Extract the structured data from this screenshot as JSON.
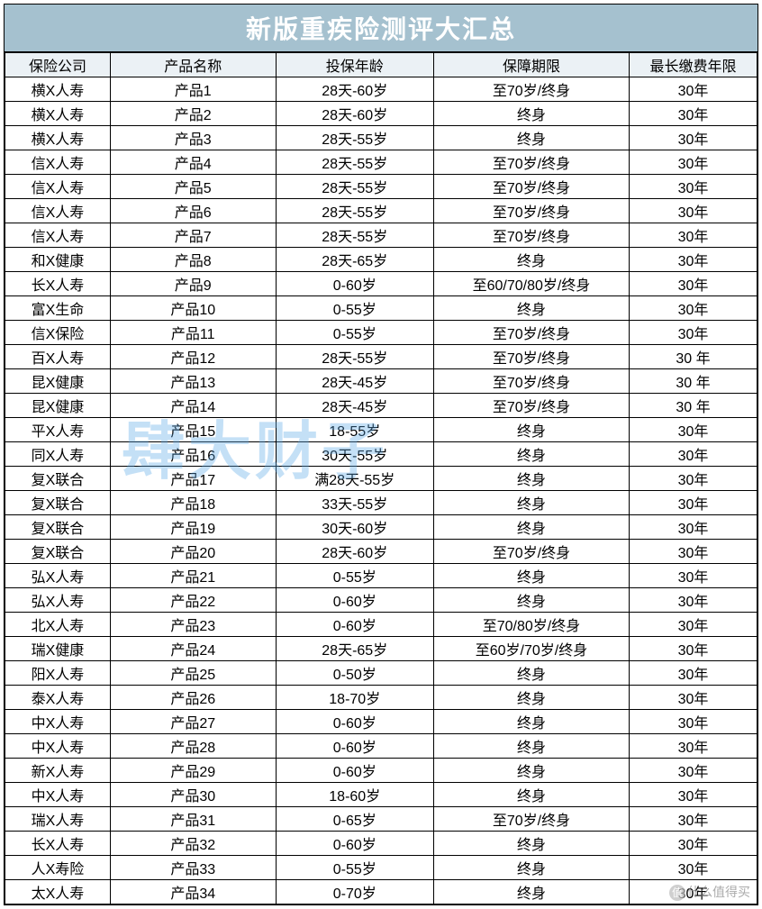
{
  "title": "新版重疾险测评大汇总",
  "watermark": "肆大财子",
  "footmark": "什么值得买",
  "columns": [
    "保险公司",
    "产品名称",
    "投保年龄",
    "保障期限",
    "最长缴费年限"
  ],
  "column_widths_pct": [
    14,
    22,
    21,
    26,
    17
  ],
  "colors": {
    "title_bg": "#a5c1cf",
    "title_text": "#ffffff",
    "header_bg": "#ebf1f5",
    "cell_bg": "#ffffff",
    "border": "#000000",
    "text": "#000000",
    "watermark": "#5aa8e8"
  },
  "fonts": {
    "title_size_pt": 22,
    "cell_size_pt": 12
  },
  "rows": [
    [
      "横X人寿",
      "产品1",
      "28天-60岁",
      "至70岁/终身",
      "30年"
    ],
    [
      "横X人寿",
      "产品2",
      "28天-60岁",
      "终身",
      "30年"
    ],
    [
      "横X人寿",
      "产品3",
      "28天-55岁",
      "终身",
      "30年"
    ],
    [
      "信X人寿",
      "产品4",
      "28天-55岁",
      "至70岁/终身",
      "30年"
    ],
    [
      "信X人寿",
      "产品5",
      "28天-55岁",
      "至70岁/终身",
      "30年"
    ],
    [
      "信X人寿",
      "产品6",
      "28天-55岁",
      "至70岁/终身",
      "30年"
    ],
    [
      "信X人寿",
      "产品7",
      "28天-55岁",
      "至70岁/终身",
      "30年"
    ],
    [
      "和X健康",
      "产品8",
      "28天-65岁",
      "终身",
      "30年"
    ],
    [
      "长X人寿",
      "产品9",
      "0-60岁",
      "至60/70/80岁/终身",
      "30年"
    ],
    [
      "富X生命",
      "产品10",
      "0-55岁",
      "终身",
      "30年"
    ],
    [
      "信X保险",
      "产品11",
      "0-55岁",
      "至70岁/终身",
      "30年"
    ],
    [
      "百X人寿",
      "产品12",
      "28天-55岁",
      "至70岁/终身",
      "30 年"
    ],
    [
      "昆X健康",
      "产品13",
      "28天-45岁",
      "至70岁/终身",
      "30 年"
    ],
    [
      "昆X健康",
      "产品14",
      "28天-45岁",
      "至70岁/终身",
      "30 年"
    ],
    [
      "平X人寿",
      "产品15",
      "18-55岁",
      "终身",
      "30年"
    ],
    [
      "同X人寿",
      "产品16",
      "30天-55岁",
      "终身",
      "30年"
    ],
    [
      "复X联合",
      "产品17",
      "满28天-55岁",
      "终身",
      "30年"
    ],
    [
      "复X联合",
      "产品18",
      "33天-55岁",
      "终身",
      "30年"
    ],
    [
      "复X联合",
      "产品19",
      "30天-60岁",
      "终身",
      "30年"
    ],
    [
      "复X联合",
      "产品20",
      "28天-60岁",
      "至70岁/终身",
      "30年"
    ],
    [
      "弘X人寿",
      "产品21",
      "0-55岁",
      "终身",
      "30年"
    ],
    [
      "弘X人寿",
      "产品22",
      "0-60岁",
      "终身",
      "30年"
    ],
    [
      "北X人寿",
      "产品23",
      "0-60岁",
      "至70/80岁/终身",
      "30年"
    ],
    [
      "瑞X健康",
      "产品24",
      "28天-65岁",
      "至60岁/70岁/终身",
      "30年"
    ],
    [
      "阳X人寿",
      "产品25",
      "0-50岁",
      "终身",
      "30年"
    ],
    [
      "泰X人寿",
      "产品26",
      "18-70岁",
      "终身",
      "30年"
    ],
    [
      "中X人寿",
      "产品27",
      "0-60岁",
      "终身",
      "30年"
    ],
    [
      "中X人寿",
      "产品28",
      "0-60岁",
      "终身",
      "30年"
    ],
    [
      "新X人寿",
      "产品29",
      "0-60岁",
      "终身",
      "30年"
    ],
    [
      "中X人寿",
      "产品30",
      "18-60岁",
      "终身",
      "30年"
    ],
    [
      "瑞X人寿",
      "产品31",
      "0-65岁",
      "至70岁/终身",
      "30年"
    ],
    [
      "长X人寿",
      "产品32",
      "0-60岁",
      "终身",
      "30年"
    ],
    [
      "人X寿险",
      "产品33",
      "0-55岁",
      "终身",
      "30年"
    ],
    [
      "太X人寿",
      "产品34",
      "0-70岁",
      "终身",
      "30年"
    ]
  ]
}
